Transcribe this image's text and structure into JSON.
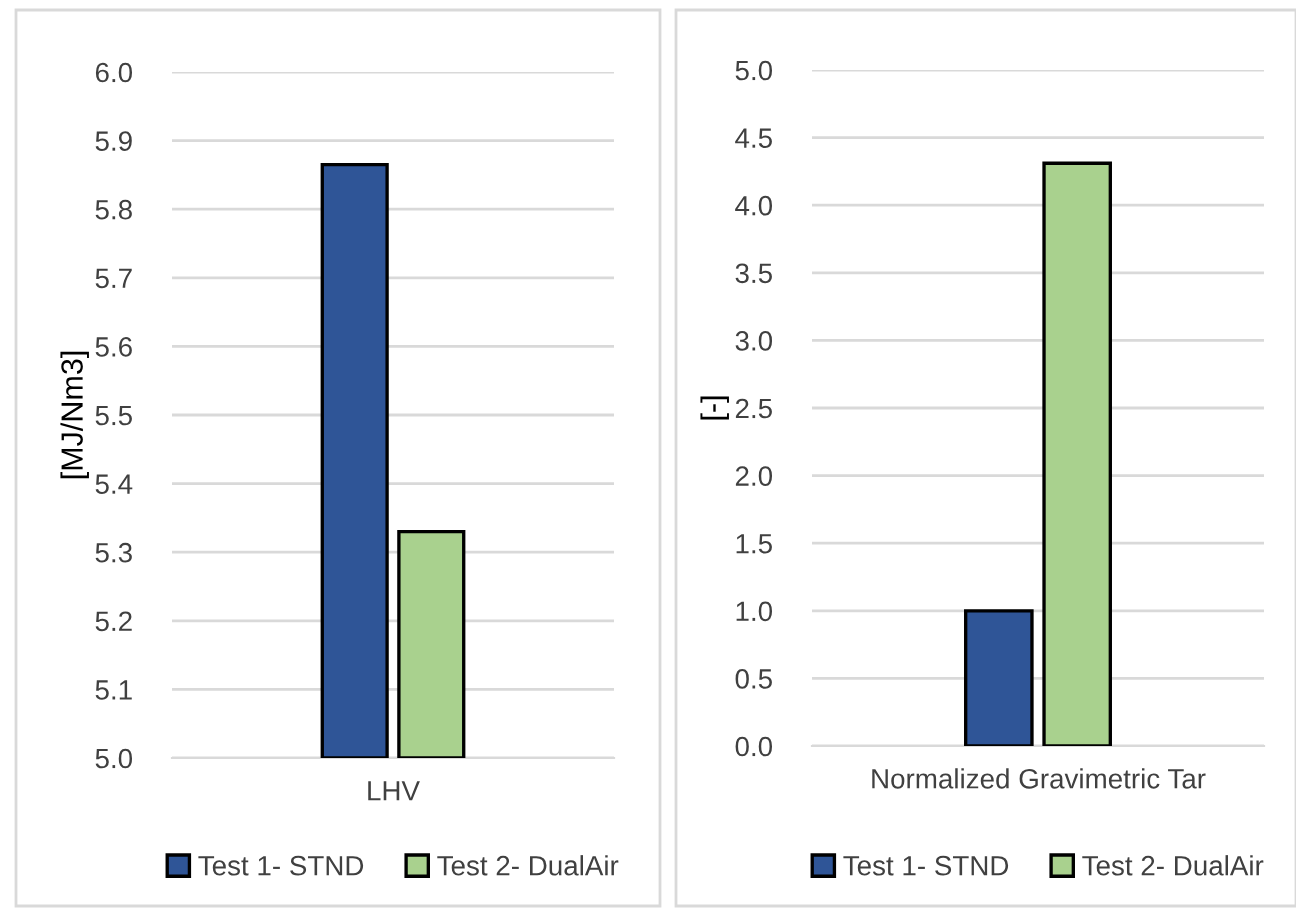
{
  "chart_data": [
    {
      "type": "bar",
      "categories": [
        "LHV"
      ],
      "ylabel": "[MJ/Nm3]",
      "ylim": [
        5.0,
        6.0
      ],
      "yticks": [
        {
          "value": 5.0,
          "label": "5.0"
        },
        {
          "value": 5.1,
          "label": "5.1"
        },
        {
          "value": 5.2,
          "label": "5.2"
        },
        {
          "value": 5.3,
          "label": "5.3"
        },
        {
          "value": 5.4,
          "label": "5.4"
        },
        {
          "value": 5.5,
          "label": "5.5"
        },
        {
          "value": 5.6,
          "label": "5.6"
        },
        {
          "value": 5.7,
          "label": "5.7"
        },
        {
          "value": 5.8,
          "label": "5.8"
        },
        {
          "value": 5.9,
          "label": "5.9"
        },
        {
          "value": 6.0,
          "label": "6.0"
        }
      ],
      "grid": "y",
      "legend": "bottom",
      "series": [
        {
          "name": "Test 1- STND",
          "color": "#2f5597",
          "values": [
            5.865
          ]
        },
        {
          "name": "Test 2- DualAir",
          "color": "#a9d18e",
          "values": [
            5.33
          ]
        }
      ]
    },
    {
      "type": "bar",
      "categories": [
        "Normalized Gravimetric Tar"
      ],
      "ylabel": "[-]",
      "ylim": [
        0.0,
        5.0
      ],
      "yticks": [
        {
          "value": 0.0,
          "label": "0.0"
        },
        {
          "value": 0.5,
          "label": "0.5"
        },
        {
          "value": 1.0,
          "label": "1.0"
        },
        {
          "value": 1.5,
          "label": "1.5"
        },
        {
          "value": 2.0,
          "label": "2.0"
        },
        {
          "value": 2.5,
          "label": "2.5"
        },
        {
          "value": 3.0,
          "label": "3.0"
        },
        {
          "value": 3.5,
          "label": "3.5"
        },
        {
          "value": 4.0,
          "label": "4.0"
        },
        {
          "value": 4.5,
          "label": "4.5"
        },
        {
          "value": 5.0,
          "label": "5.0"
        }
      ],
      "grid": "y",
      "legend": "bottom",
      "series": [
        {
          "name": "Test 1- STND",
          "color": "#2f5597",
          "values": [
            1.0
          ]
        },
        {
          "name": "Test 2- DualAir",
          "color": "#a9d18e",
          "values": [
            4.31
          ]
        }
      ]
    }
  ]
}
